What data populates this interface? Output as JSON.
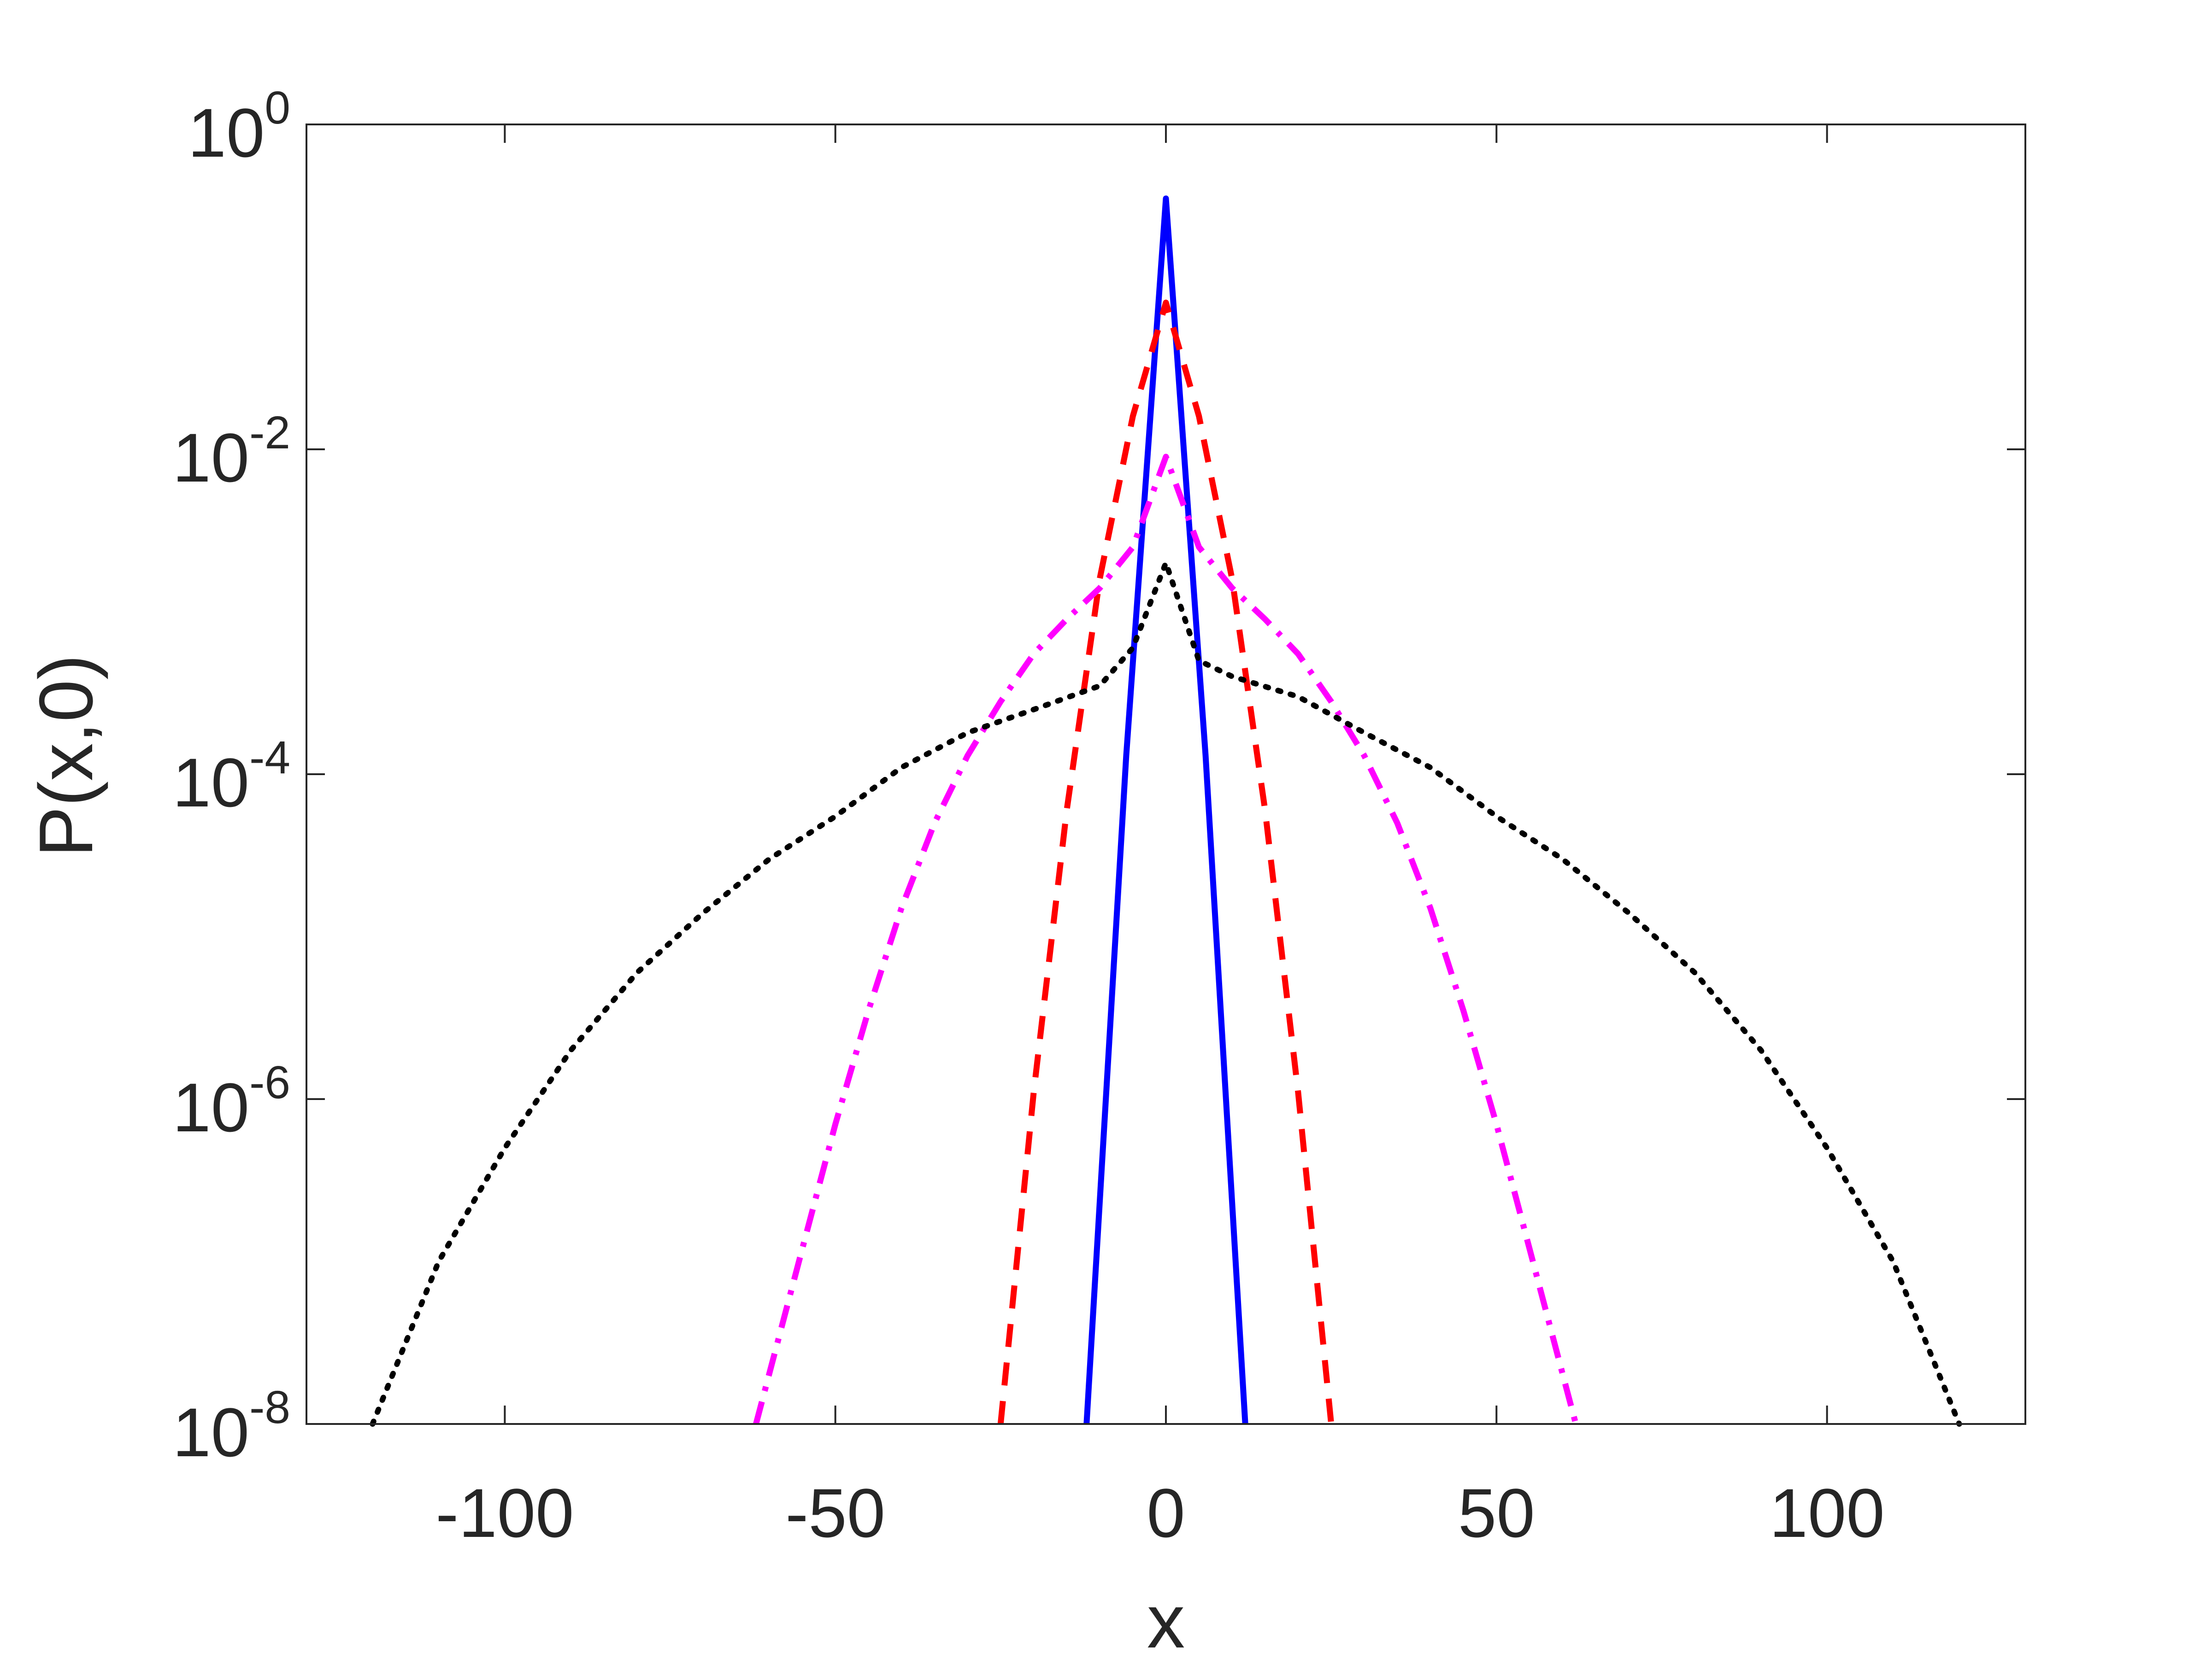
{
  "chart_data": {
    "type": "line",
    "xlabel": "x",
    "ylabel": "P(x,0)",
    "xlim": [
      -130,
      130
    ],
    "ylim": [
      1e-08,
      1
    ],
    "yscale": "log",
    "xticks": [
      -100,
      -50,
      0,
      50,
      100
    ],
    "xtick_labels": [
      "-100",
      "-50",
      "0",
      "50",
      "100"
    ],
    "yticks": [
      1e-08,
      1e-06,
      0.0001,
      0.01,
      1
    ],
    "ytick_labels": [
      {
        "base": "10",
        "exp": "-8"
      },
      {
        "base": "10",
        "exp": "-6"
      },
      {
        "base": "10",
        "exp": "-4"
      },
      {
        "base": "10",
        "exp": "-2"
      },
      {
        "base": "10",
        "exp": "0"
      }
    ],
    "grid": false,
    "series": [
      {
        "color": "#0000ff",
        "style": "solid",
        "points": [
          [
            -12,
            1e-08
          ],
          [
            -6,
            0.00013
          ],
          [
            0,
            0.35
          ],
          [
            6,
            0.00013
          ],
          [
            12,
            1e-08
          ]
        ]
      },
      {
        "color": "#ff0000",
        "style": "dashed",
        "points": [
          [
            -25,
            1e-08
          ],
          [
            -20,
            1.1e-06
          ],
          [
            -15,
            6e-05
          ],
          [
            -10,
            0.0016
          ],
          [
            -5,
            0.016
          ],
          [
            0,
            0.08
          ],
          [
            5,
            0.016
          ],
          [
            10,
            0.0016
          ],
          [
            15,
            6e-05
          ],
          [
            20,
            1.1e-06
          ],
          [
            25,
            1e-08
          ]
        ]
      },
      {
        "color": "#ff00ff",
        "style": "dashdot",
        "points": [
          [
            -62,
            1e-08
          ],
          [
            -55,
            1.2e-07
          ],
          [
            -50,
            7e-07
          ],
          [
            -45,
            3.5e-06
          ],
          [
            -40,
            1.5e-05
          ],
          [
            -35,
            5e-05
          ],
          [
            -30,
            0.00013
          ],
          [
            -25,
            0.00028
          ],
          [
            -20,
            0.00055
          ],
          [
            -15,
            0.0009
          ],
          [
            -10,
            0.0014
          ],
          [
            -5,
            0.0025
          ],
          [
            0,
            0.009
          ],
          [
            5,
            0.0025
          ],
          [
            10,
            0.0014
          ],
          [
            15,
            0.0009
          ],
          [
            20,
            0.00055
          ],
          [
            25,
            0.00028
          ],
          [
            30,
            0.00013
          ],
          [
            35,
            5e-05
          ],
          [
            40,
            1.5e-05
          ],
          [
            45,
            3.5e-06
          ],
          [
            50,
            7e-07
          ],
          [
            55,
            1.2e-07
          ],
          [
            62,
            1e-08
          ]
        ]
      },
      {
        "color": "#000000",
        "style": "dotted",
        "points": [
          [
            -120,
            1e-08
          ],
          [
            -110,
            1e-07
          ],
          [
            -100,
            5e-07
          ],
          [
            -90,
            2e-06
          ],
          [
            -80,
            6e-06
          ],
          [
            -70,
            1.4e-05
          ],
          [
            -60,
            3e-05
          ],
          [
            -50,
            5.5e-05
          ],
          [
            -40,
            0.00011
          ],
          [
            -30,
            0.00018
          ],
          [
            -20,
            0.00025
          ],
          [
            -10,
            0.00035
          ],
          [
            -5,
            0.0006
          ],
          [
            0,
            0.002
          ],
          [
            5,
            0.0005
          ],
          [
            10,
            0.0004
          ],
          [
            20,
            0.0003
          ],
          [
            30,
            0.00018
          ],
          [
            40,
            0.00011
          ],
          [
            50,
            5.5e-05
          ],
          [
            60,
            3e-05
          ],
          [
            70,
            1.4e-05
          ],
          [
            80,
            6e-06
          ],
          [
            90,
            2e-06
          ],
          [
            100,
            5e-07
          ],
          [
            110,
            1e-07
          ],
          [
            120,
            1e-08
          ]
        ]
      }
    ]
  }
}
